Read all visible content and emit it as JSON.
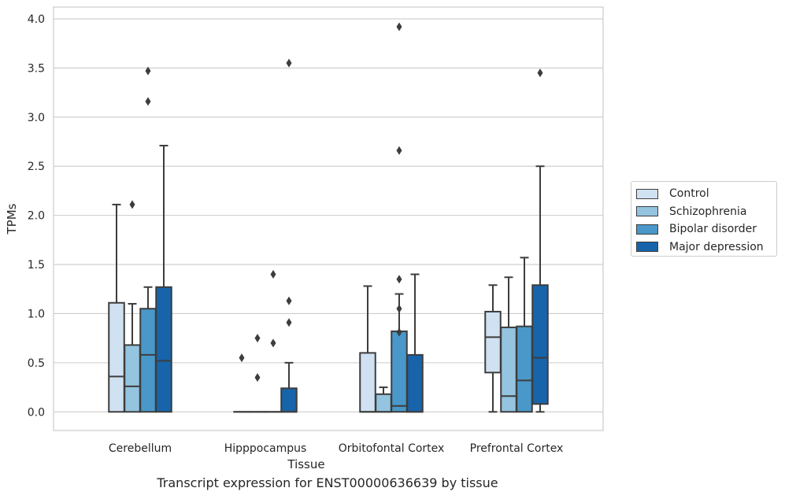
{
  "chart_data": {
    "type": "box",
    "xlabel": "Tissue",
    "ylabel": "TPMs",
    "caption": "Transcript expression for ENST00000636639 by tissue",
    "ylim": [
      -0.19,
      4.12
    ],
    "yticks": [
      "0.0",
      "0.5",
      "1.0",
      "1.5",
      "2.0",
      "2.5",
      "3.0",
      "3.5",
      "4.0"
    ],
    "ytick_values": [
      0,
      0.5,
      1.0,
      1.5,
      2.0,
      2.5,
      3.0,
      3.5,
      4.0
    ],
    "grid": true,
    "legend_position": "right",
    "categories": [
      "Cerebellum",
      "Hipppocampus",
      "Orbitofontal Cortex",
      "Prefrontal Cortex"
    ],
    "series": [
      {
        "name": "Control",
        "color": "#d0e1f2",
        "boxes": [
          {
            "whislo": 0,
            "q1": 0,
            "med": 0.36,
            "q3": 1.11,
            "whishi": 2.11,
            "fliers": []
          },
          {
            "whislo": 0,
            "q1": 0,
            "med": 0,
            "q3": 0,
            "whishi": 0,
            "fliers": [
              0.55
            ]
          },
          {
            "whislo": 0,
            "q1": 0,
            "med": 0,
            "q3": 0.6,
            "whishi": 1.28,
            "fliers": []
          },
          {
            "whislo": 0,
            "q1": 0.4,
            "med": 0.76,
            "q3": 1.02,
            "whishi": 1.29,
            "fliers": []
          }
        ]
      },
      {
        "name": "Schizophrenia",
        "color": "#94c4df",
        "boxes": [
          {
            "whislo": 0,
            "q1": 0,
            "med": 0.26,
            "q3": 0.68,
            "whishi": 1.1,
            "fliers": [
              2.11
            ]
          },
          {
            "whislo": 0,
            "q1": 0,
            "med": 0,
            "q3": 0,
            "whishi": 0,
            "fliers": [
              0.35,
              0.75
            ]
          },
          {
            "whislo": 0,
            "q1": 0,
            "med": 0,
            "q3": 0.18,
            "whishi": 0.25,
            "fliers": []
          },
          {
            "whislo": 0,
            "q1": 0,
            "med": 0.16,
            "q3": 0.86,
            "whishi": 1.37,
            "fliers": []
          }
        ]
      },
      {
        "name": "Bipolar disorder",
        "color": "#4a98c9",
        "boxes": [
          {
            "whislo": 0,
            "q1": 0,
            "med": 0.58,
            "q3": 1.05,
            "whishi": 1.27,
            "fliers": [
              3.16,
              3.47
            ]
          },
          {
            "whislo": 0,
            "q1": 0,
            "med": 0,
            "q3": 0,
            "whishi": 0,
            "fliers": [
              0.7,
              1.4
            ]
          },
          {
            "whislo": 0,
            "q1": 0,
            "med": 0.06,
            "q3": 0.82,
            "whishi": 1.2,
            "fliers": [
              0.81,
              1.05,
              1.35,
              2.66,
              3.92
            ]
          },
          {
            "whislo": 0,
            "q1": 0,
            "med": 0.32,
            "q3": 0.87,
            "whishi": 1.57,
            "fliers": []
          }
        ]
      },
      {
        "name": "Major depression",
        "color": "#1764ab",
        "boxes": [
          {
            "whislo": 0,
            "q1": 0,
            "med": 0.52,
            "q3": 1.27,
            "whishi": 2.71,
            "fliers": []
          },
          {
            "whislo": 0,
            "q1": 0,
            "med": 0,
            "q3": 0.24,
            "whishi": 0.5,
            "fliers": [
              0.91,
              1.13,
              3.55
            ]
          },
          {
            "whislo": 0,
            "q1": 0,
            "med": 0,
            "q3": 0.58,
            "whishi": 1.4,
            "fliers": []
          },
          {
            "whislo": 0,
            "q1": 0.08,
            "med": 0.55,
            "q3": 1.29,
            "whishi": 2.5,
            "fliers": [
              3.45
            ]
          }
        ]
      }
    ]
  }
}
